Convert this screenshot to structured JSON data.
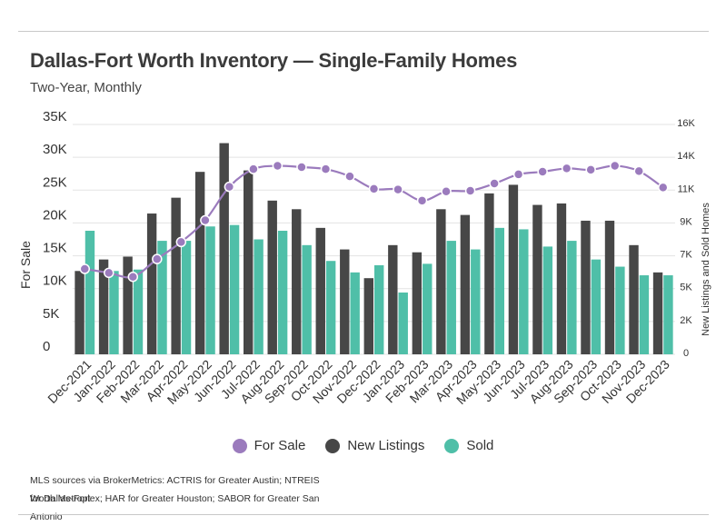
{
  "title": "Dallas-Fort Worth Inventory — Single-Family Homes",
  "subtitle": "Two-Year, Monthly",
  "source_line1": "MLS sources via BrokerMetrics: ACTRIS for Greater Austin; NTREIS for Dallas-Fort",
  "source_line2": "Worth Metroplex; HAR for Greater Houston; SABOR for Greater San Antonio",
  "colors": {
    "for_sale": "#9b7bbd",
    "new_listings": "#474747",
    "sold": "#4fbfa8",
    "grid": "#e3e3e3",
    "text": "#333333"
  },
  "chart_data": {
    "type": "bar",
    "categories": [
      "Dec-2021",
      "Jan-2022",
      "Feb-2022",
      "Mar-2022",
      "Apr-2022",
      "May-2022",
      "Jun-2022",
      "Jul-2022",
      "Aug-2022",
      "Sep-2022",
      "Oct-2022",
      "Nov-2022",
      "Dec-2022",
      "Jan-2023",
      "Feb-2023",
      "Mar-2023",
      "Apr-2023",
      "May-2023",
      "Jun-2023",
      "Jul-2023",
      "Aug-2023",
      "Sep-2023",
      "Oct-2023",
      "Nov-2023",
      "Dec-2023"
    ],
    "ylabel": "For Sale",
    "y2label": "New Listings and Sold Homes",
    "ylim": [
      0,
      35000
    ],
    "y2lim": [
      0,
      16000
    ],
    "y_ticks": [
      "0",
      "5K",
      "10K",
      "15K",
      "20K",
      "25K",
      "30K",
      "35K"
    ],
    "y2_ticks": [
      "0",
      "2K",
      "5K",
      "7K",
      "9K",
      "11K",
      "14K",
      "16K"
    ],
    "legend_position": "bottom",
    "series": [
      {
        "name": "For Sale",
        "type": "line",
        "axis": "left",
        "values": [
          13000,
          12400,
          11800,
          14500,
          17100,
          20400,
          25500,
          28200,
          28700,
          28500,
          28200,
          27100,
          25200,
          25100,
          23400,
          24800,
          24900,
          26000,
          27400,
          27800,
          28300,
          28100,
          28700,
          27900,
          25400
        ]
      },
      {
        "name": "New Listings",
        "type": "bar",
        "axis": "right",
        "values": [
          5800,
          6600,
          6800,
          9800,
          10900,
          12700,
          14700,
          12800,
          10700,
          10100,
          8800,
          7300,
          5300,
          7600,
          7100,
          10100,
          9700,
          11200,
          11800,
          10400,
          10500,
          9300,
          9300,
          7600,
          5700
        ]
      },
      {
        "name": "Sold",
        "type": "bar",
        "axis": "right",
        "values": [
          8600,
          5800,
          5900,
          7900,
          7900,
          8900,
          9000,
          8000,
          8600,
          7600,
          6500,
          5700,
          6200,
          4300,
          6300,
          7900,
          7300,
          8800,
          8700,
          7500,
          7900,
          6600,
          6100,
          5500,
          5500
        ]
      }
    ]
  }
}
